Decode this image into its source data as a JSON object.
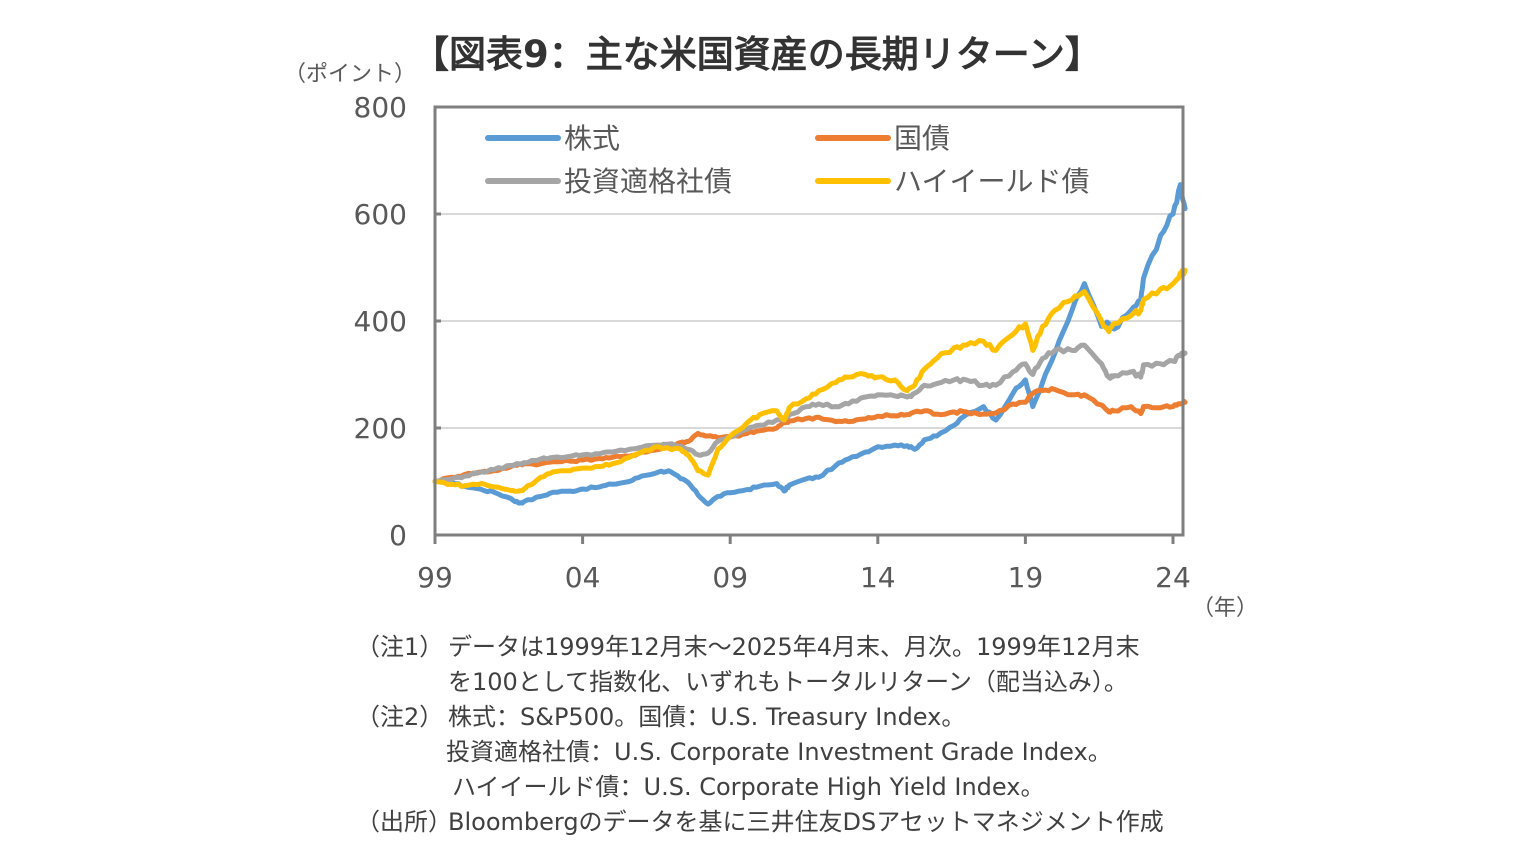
{
  "title": "【図表9：主な米国資産の長期リターン】",
  "y_unit_label": "（ポイント）",
  "x_unit_label": "（年）",
  "colors": {
    "stocks": "#5B9BD5",
    "treasury": "#ED7D31",
    "investment_grade": "#A5A5A5",
    "high_yield": "#FFC000",
    "axis": "#7F7F7F",
    "grid": "#D9D9D9",
    "tick_text": "#595959"
  },
  "chart_data": {
    "type": "line",
    "title": "【図表9：主な米国資産の長期リターン】",
    "xlabel": "（年）",
    "ylabel": "（ポイント）",
    "ylim": [
      0,
      800
    ],
    "yticks": [
      0,
      200,
      400,
      600,
      800
    ],
    "ytick_labels": [
      "0",
      "200",
      "400",
      "600",
      "800"
    ],
    "xlim": [
      1999.92,
      2025.33
    ],
    "xticks": [
      1999.92,
      2004.92,
      2009.92,
      2014.92,
      2019.92,
      2024.92
    ],
    "xtick_labels": [
      "99",
      "04",
      "09",
      "14",
      "19",
      "24"
    ],
    "grid": "horizontal",
    "legend_position": "top-left",
    "x": [
      1999.92,
      2000.5,
      2000.92,
      2001.5,
      2001.92,
      2002.5,
      2002.75,
      2002.92,
      2003.5,
      2003.92,
      2004.5,
      2004.92,
      2005.5,
      2005.92,
      2006.5,
      2006.92,
      2007.5,
      2007.83,
      2008.25,
      2008.5,
      2008.83,
      2009.17,
      2009.5,
      2009.92,
      2010.5,
      2010.92,
      2011.5,
      2011.75,
      2011.92,
      2012.5,
      2012.92,
      2013.5,
      2013.92,
      2014.5,
      2014.92,
      2015.5,
      2015.92,
      2016.17,
      2016.5,
      2016.92,
      2017.5,
      2017.92,
      2018.5,
      2018.92,
      2019.5,
      2019.92,
      2020.17,
      2020.5,
      2020.92,
      2021.5,
      2021.92,
      2022.5,
      2022.75,
      2022.92,
      2023.5,
      2023.83,
      2023.92,
      2024.5,
      2024.92,
      2025.17,
      2025.33
    ],
    "series": [
      {
        "name": "株式",
        "key": "stocks",
        "values": [
          100,
          98,
          91,
          85,
          80,
          68,
          60,
          62,
          72,
          80,
          82,
          86,
          90,
          95,
          100,
          110,
          118,
          120,
          105,
          98,
          75,
          58,
          72,
          79,
          85,
          91,
          96,
          82,
          93,
          105,
          108,
          130,
          142,
          155,
          165,
          168,
          167,
          160,
          178,
          185,
          205,
          225,
          240,
          215,
          265,
          290,
          240,
          285,
          340,
          420,
          470,
          390,
          395,
          385,
          420,
          440,
          480,
          560,
          600,
          655,
          610
        ]
      },
      {
        "name": "国債",
        "key": "treasury",
        "values": [
          100,
          108,
          113,
          118,
          120,
          128,
          132,
          133,
          133,
          137,
          138,
          140,
          143,
          145,
          147,
          155,
          160,
          165,
          173,
          175,
          190,
          185,
          182,
          183,
          190,
          195,
          200,
          210,
          213,
          218,
          220,
          212,
          212,
          217,
          222,
          223,
          225,
          230,
          232,
          226,
          230,
          230,
          226,
          228,
          245,
          248,
          265,
          270,
          272,
          262,
          262,
          243,
          230,
          232,
          240,
          227,
          240,
          238,
          240,
          245,
          248
        ]
      },
      {
        "name": "投資適格社債",
        "key": "investment_grade",
        "values": [
          100,
          105,
          110,
          118,
          122,
          130,
          133,
          135,
          142,
          145,
          147,
          150,
          152,
          155,
          160,
          164,
          168,
          170,
          166,
          160,
          150,
          153,
          175,
          183,
          198,
          205,
          215,
          218,
          225,
          240,
          245,
          240,
          245,
          258,
          262,
          260,
          258,
          265,
          280,
          283,
          290,
          290,
          280,
          280,
          305,
          320,
          300,
          330,
          345,
          345,
          355,
          320,
          295,
          298,
          305,
          295,
          318,
          320,
          325,
          335,
          340
        ]
      },
      {
        "name": "ハイイールド債",
        "key": "high_yield",
        "values": [
          100,
          95,
          92,
          96,
          90,
          83,
          82,
          85,
          108,
          118,
          120,
          125,
          128,
          133,
          145,
          155,
          165,
          162,
          160,
          150,
          120,
          112,
          160,
          185,
          210,
          225,
          232,
          215,
          238,
          255,
          270,
          285,
          295,
          300,
          295,
          290,
          270,
          280,
          310,
          330,
          350,
          355,
          362,
          345,
          375,
          395,
          345,
          390,
          420,
          440,
          455,
          400,
          380,
          395,
          410,
          420,
          440,
          460,
          470,
          490,
          495
        ]
      }
    ]
  },
  "legend": [
    {
      "label": "株式",
      "key": "stocks"
    },
    {
      "label": "国債",
      "key": "treasury"
    },
    {
      "label": "投資適格社債",
      "key": "investment_grade"
    },
    {
      "label": "ハイイールド債",
      "key": "high_yield"
    }
  ],
  "notes": {
    "note1_label": "（注1）",
    "note1_line1": "データは1999年12月末～2025年4月末、月次。1999年12月末",
    "note1_line2": "を100として指数化、いずれもトータルリターン（配当込み）。",
    "note2_label": "（注2）",
    "note2_line1": "株式：S&P500。国債：U.S. Treasury Index。",
    "note2_line2": "投資適格社債：U.S. Corporate Investment Grade Index。",
    "note2_line3": "ハイイールド債：U.S. Corporate High Yield Index。",
    "source_label": "（出所）",
    "source_text": "Bloombergのデータを基に三井住友DSアセットマネジメント作成"
  }
}
